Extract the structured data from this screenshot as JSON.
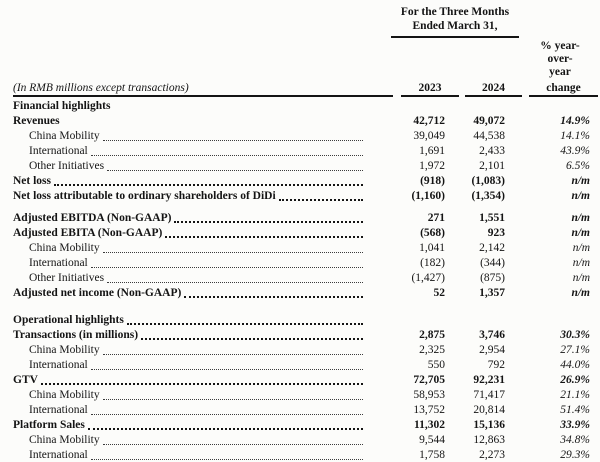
{
  "page": {
    "background": "#fcfcfa",
    "text_color": "#141414"
  },
  "header": {
    "period_line1": "For the Three Months",
    "period_line2": "Ended March 31,",
    "yoy_line1": "% year-",
    "yoy_line2": "over-",
    "yoy_line3": "year",
    "change_label": "change",
    "unit_note": "(In RMB millions except transactions)",
    "year_2023": "2023",
    "year_2024": "2024"
  },
  "rows": [
    {
      "label": "Financial highlights",
      "v2023": "",
      "v2024": "",
      "yoy": "",
      "bold": true,
      "indent": false,
      "dots": false,
      "gap": 0
    },
    {
      "label": "Revenues",
      "v2023": "42,712",
      "v2024": "49,072",
      "yoy": "14.9%",
      "bold": true,
      "indent": false,
      "dots": false,
      "gap": 0
    },
    {
      "label": "China Mobility",
      "v2023": "39,049",
      "v2024": "44,538",
      "yoy": "14.1%",
      "bold": false,
      "indent": true,
      "dots": true,
      "gap": 0
    },
    {
      "label": "International",
      "v2023": "1,691",
      "v2024": "2,433",
      "yoy": "43.9%",
      "bold": false,
      "indent": true,
      "dots": true,
      "gap": 0
    },
    {
      "label": "Other Initiatives",
      "v2023": "1,972",
      "v2024": "2,101",
      "yoy": "6.5%",
      "bold": false,
      "indent": true,
      "dots": true,
      "gap": 0
    },
    {
      "label": "Net loss",
      "v2023": "(918)",
      "v2024": "(1,083)",
      "yoy": "n/m",
      "bold": true,
      "indent": false,
      "dots": true,
      "gap": 0
    },
    {
      "label": "Net loss attributable to ordinary shareholders of DiDi",
      "v2023": "(1,160)",
      "v2024": "(1,354)",
      "yoy": "n/m",
      "bold": true,
      "indent": false,
      "dots": true,
      "gap": 0
    },
    {
      "label": "Adjusted EBITDA (Non-GAAP)",
      "v2023": "271",
      "v2024": "1,551",
      "yoy": "n/m",
      "bold": true,
      "indent": false,
      "dots": true,
      "gap": 1
    },
    {
      "label": "Adjusted EBITA (Non-GAAP)",
      "v2023": "(568)",
      "v2024": "923",
      "yoy": "n/m",
      "bold": true,
      "indent": false,
      "dots": true,
      "gap": 0
    },
    {
      "label": "China Mobility",
      "v2023": "1,041",
      "v2024": "2,142",
      "yoy": "n/m",
      "bold": false,
      "indent": true,
      "dots": true,
      "gap": 0
    },
    {
      "label": "International",
      "v2023": "(182)",
      "v2024": "(344)",
      "yoy": "n/m",
      "bold": false,
      "indent": true,
      "dots": true,
      "gap": 0
    },
    {
      "label": "Other Initiatives",
      "v2023": "(1,427)",
      "v2024": "(875)",
      "yoy": "n/m",
      "bold": false,
      "indent": true,
      "dots": true,
      "gap": 0
    },
    {
      "label": "Adjusted net income (Non-GAAP)",
      "v2023": "52",
      "v2024": "1,357",
      "yoy": "n/m",
      "bold": true,
      "indent": false,
      "dots": true,
      "gap": 0
    },
    {
      "label": "Operational highlights",
      "v2023": "",
      "v2024": "",
      "yoy": "",
      "bold": true,
      "indent": false,
      "dots": true,
      "gap": 2
    },
    {
      "label": "Transactions (in millions)",
      "v2023": "2,875",
      "v2024": "3,746",
      "yoy": "30.3%",
      "bold": true,
      "indent": false,
      "dots": true,
      "gap": 0
    },
    {
      "label": "China Mobility",
      "v2023": "2,325",
      "v2024": "2,954",
      "yoy": "27.1%",
      "bold": false,
      "indent": true,
      "dots": true,
      "gap": 0
    },
    {
      "label": "International",
      "v2023": "550",
      "v2024": "792",
      "yoy": "44.0%",
      "bold": false,
      "indent": true,
      "dots": true,
      "gap": 0
    },
    {
      "label": "GTV",
      "v2023": "72,705",
      "v2024": "92,231",
      "yoy": "26.9%",
      "bold": true,
      "indent": false,
      "dots": true,
      "gap": 0
    },
    {
      "label": "China Mobility",
      "v2023": "58,953",
      "v2024": "71,417",
      "yoy": "21.1%",
      "bold": false,
      "indent": true,
      "dots": true,
      "gap": 0
    },
    {
      "label": "International",
      "v2023": "13,752",
      "v2024": "20,814",
      "yoy": "51.4%",
      "bold": false,
      "indent": true,
      "dots": true,
      "gap": 0
    },
    {
      "label": "Platform Sales",
      "v2023": "11,302",
      "v2024": "15,136",
      "yoy": "33.9%",
      "bold": true,
      "indent": false,
      "dots": true,
      "gap": 0
    },
    {
      "label": "China Mobility",
      "v2023": "9,544",
      "v2024": "12,863",
      "yoy": "34.8%",
      "bold": false,
      "indent": true,
      "dots": true,
      "gap": 0
    },
    {
      "label": "International",
      "v2023": "1,758",
      "v2024": "2,273",
      "yoy": "29.3%",
      "bold": false,
      "indent": true,
      "dots": true,
      "gap": 0
    }
  ]
}
